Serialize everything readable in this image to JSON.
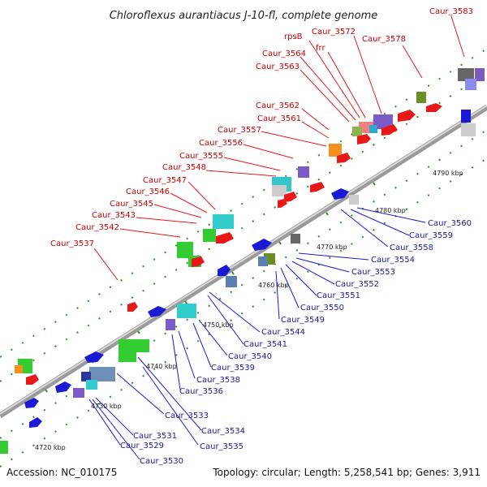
{
  "title": "Chloroflexus aurantiacus J-10-fl, complete genome",
  "footer": {
    "accession": "Accession: NC_010175",
    "summary": "Topology: circular; Length: 5,258,541 bp; Genes: 3,911"
  },
  "colors": {
    "forward": "#e81818",
    "reverse": "#1a1ad6",
    "backbone": "#888888",
    "tick": "#2e8b2e",
    "red_label": "#cc0000",
    "blue_label": "#1a1a99"
  },
  "scale_labels": [
    "4720 kbp",
    "4730 kbp",
    "4740 kbp",
    "4750 kbp",
    "4760 kbp",
    "4770 kbp",
    "4780 kbp",
    "4790 kbp"
  ],
  "top_labels": [
    "Caur_3583",
    "Caur_3572",
    "Caur_3578",
    "rpsB",
    "frr",
    "Caur_3564",
    "Caur_3563",
    "Caur_3562",
    "Caur_3561",
    "Caur_3557",
    "Caur_3556",
    "Caur_3555",
    "Caur_3548",
    "Caur_3547",
    "Caur_3546",
    "Caur_3545",
    "Caur_3543",
    "Caur_3542",
    "Caur_3537"
  ],
  "bottom_labels": [
    "Caur_3560",
    "Caur_3559",
    "Caur_3558",
    "Caur_3554",
    "Caur_3553",
    "Caur_3552",
    "Caur_3551",
    "Caur_3550",
    "Caur_3549",
    "Caur_3544",
    "Caur_3541",
    "Caur_3540",
    "Caur_3539",
    "Caur_3538",
    "Caur_3536",
    "Caur_3533",
    "Caur_3534",
    "Caur_3531",
    "Caur_3535",
    "Caur_3529",
    "Caur_3530"
  ]
}
